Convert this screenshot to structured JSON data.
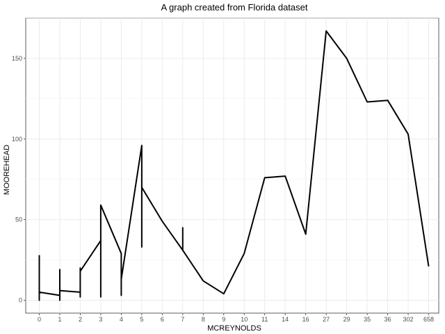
{
  "chart_data": {
    "type": "line",
    "title": "A graph created from Florida dataset",
    "xlabel": "MCREYNOLDS",
    "ylabel": "MOOREHEAD",
    "categories": [
      "0",
      "1",
      "2",
      "3",
      "4",
      "5",
      "6",
      "7",
      "8",
      "9",
      "10",
      "11",
      "14",
      "16",
      "27",
      "29",
      "35",
      "36",
      "302",
      "658"
    ],
    "ylim": [
      -8,
      175
    ],
    "yticks": [
      0,
      50,
      100,
      150
    ],
    "grid": true,
    "series": [
      {
        "name": "MOOREHEAD",
        "color": "#000000",
        "points": [
          {
            "x": "0",
            "y": 28
          },
          {
            "x": "0",
            "y": 0
          },
          {
            "x": "0",
            "y": 5
          },
          {
            "x": "1",
            "y": 3
          },
          {
            "x": "1",
            "y": 19
          },
          {
            "x": "1",
            "y": 0
          },
          {
            "x": "1",
            "y": 6
          },
          {
            "x": "2",
            "y": 5
          },
          {
            "x": "2",
            "y": 2
          },
          {
            "x": "2",
            "y": 20
          },
          {
            "x": "2",
            "y": 18
          },
          {
            "x": "3",
            "y": 37
          },
          {
            "x": "3",
            "y": 2
          },
          {
            "x": "3",
            "y": 59
          },
          {
            "x": "4",
            "y": 29
          },
          {
            "x": "4",
            "y": 3
          },
          {
            "x": "4",
            "y": 13
          },
          {
            "x": "5",
            "y": 96
          },
          {
            "x": "5",
            "y": 33
          },
          {
            "x": "5",
            "y": 70
          },
          {
            "x": "6",
            "y": 49
          },
          {
            "x": "7",
            "y": 31
          },
          {
            "x": "7",
            "y": 45
          },
          {
            "x": "7",
            "y": 31
          },
          {
            "x": "8",
            "y": 12
          },
          {
            "x": "9",
            "y": 4
          },
          {
            "x": "10",
            "y": 29
          },
          {
            "x": "11",
            "y": 76
          },
          {
            "x": "14",
            "y": 77
          },
          {
            "x": "16",
            "y": 41
          },
          {
            "x": "27",
            "y": 167
          },
          {
            "x": "29",
            "y": 150
          },
          {
            "x": "35",
            "y": 123
          },
          {
            "x": "36",
            "y": 124
          },
          {
            "x": "302",
            "y": 103
          },
          {
            "x": "658",
            "y": 21
          }
        ]
      }
    ]
  }
}
